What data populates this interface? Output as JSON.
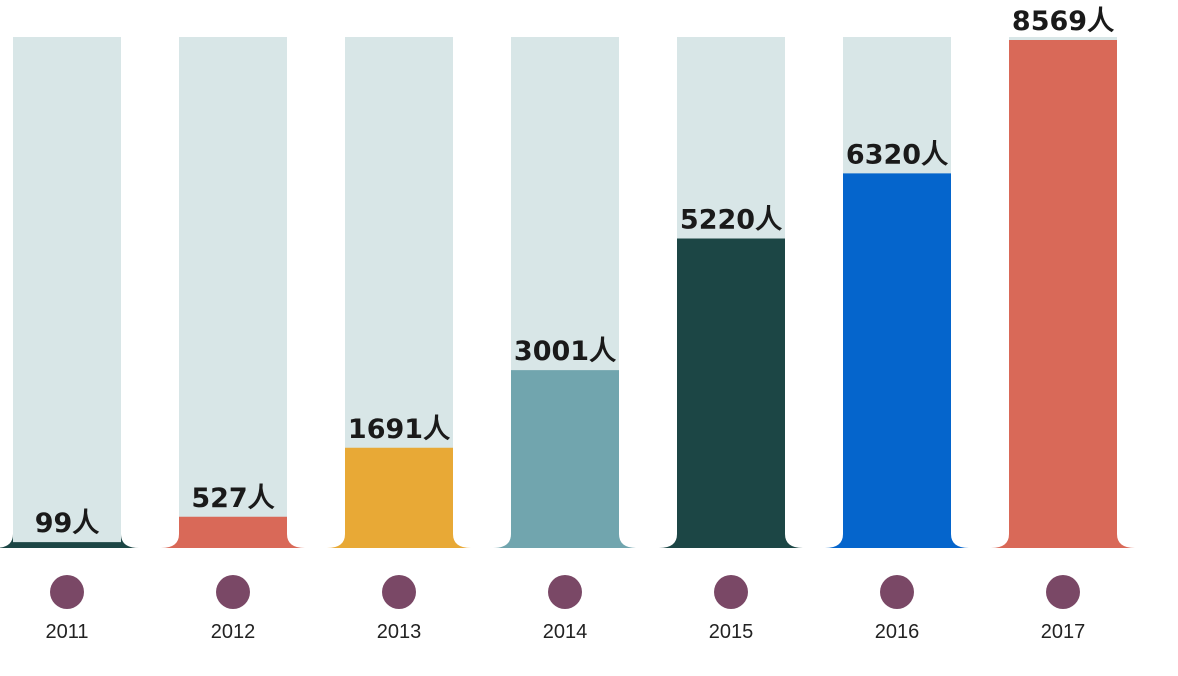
{
  "chart_data": {
    "type": "bar",
    "title": "",
    "xlabel": "",
    "ylabel": "",
    "unit": "人",
    "ylim": [
      0,
      8569
    ],
    "grid": false,
    "legend": "none",
    "categories": [
      "2011",
      "2012",
      "2013",
      "2014",
      "2015",
      "2016",
      "2017"
    ],
    "values": [
      99,
      527,
      1691,
      3001,
      5220,
      6320,
      8569
    ],
    "value_labels": [
      "99人",
      "527人",
      "1691人",
      "3001人",
      "5220人",
      "6320人",
      "8569人"
    ],
    "colors": [
      "#1c4645",
      "#d96958",
      "#e8a936",
      "#71a5ae",
      "#1c4645",
      "#0565cc",
      "#d96958"
    ],
    "track_color": "#d8e6e7",
    "marker_color": "#7a4866"
  }
}
